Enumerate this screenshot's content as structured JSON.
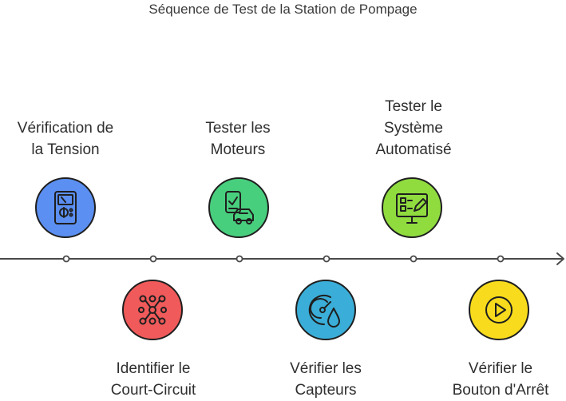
{
  "title": "Séquence de Test de la Station de Pompage",
  "steps": [
    {
      "lines": [
        "Vérification de",
        "la Tension"
      ],
      "position": "top",
      "color": "#5b8ff2",
      "icon": "multimeter-icon"
    },
    {
      "lines": [
        "Identifier le",
        "Court-Circuit"
      ],
      "position": "bottom",
      "color": "#f05a5a",
      "icon": "circuit-grid-icon"
    },
    {
      "lines": [
        "Tester les",
        "Moteurs"
      ],
      "position": "top",
      "color": "#48cf7e",
      "icon": "checklist-car-icon"
    },
    {
      "lines": [
        "Vérifier les",
        "Capteurs"
      ],
      "position": "bottom",
      "color": "#3aaed8",
      "icon": "gauge-drop-icon"
    },
    {
      "lines": [
        "Tester le",
        "Système",
        "Automatisé"
      ],
      "position": "top",
      "color": "#90dc3f",
      "icon": "monitor-edit-icon"
    },
    {
      "lines": [
        "Vérifier le",
        "Bouton d'Arrêt"
      ],
      "position": "bottom",
      "color": "#f7db1c",
      "icon": "play-button-icon"
    }
  ]
}
